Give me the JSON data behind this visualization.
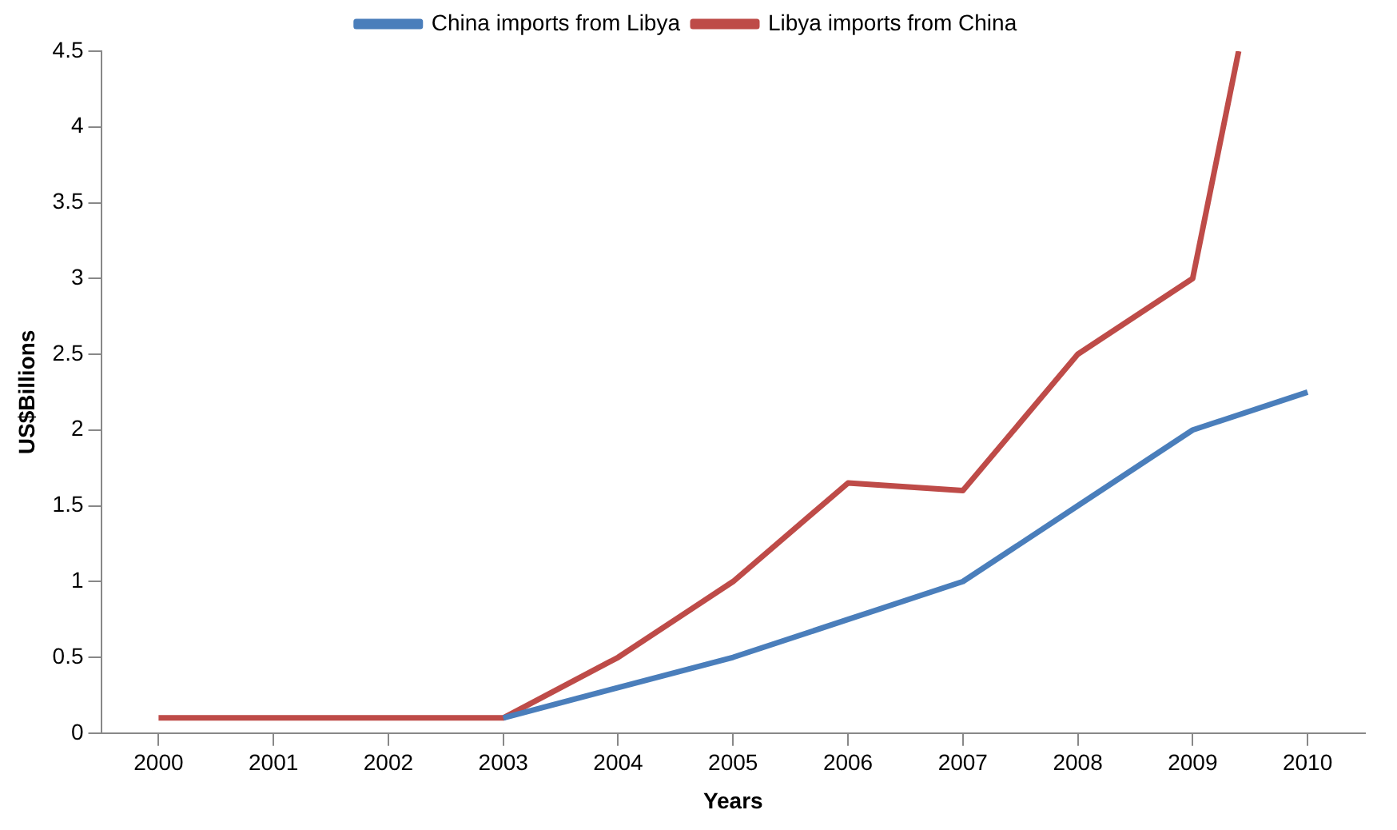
{
  "chart_data": {
    "type": "line",
    "xlabel": "Years",
    "ylabel": "US$Billions",
    "xlim": [
      1999.5,
      2010.5
    ],
    "xticks": [
      2000,
      2001,
      2002,
      2003,
      2004,
      2005,
      2006,
      2007,
      2008,
      2009,
      2010
    ],
    "ylim": [
      0,
      4.5
    ],
    "yticks": [
      0,
      0.5,
      1,
      1.5,
      2,
      2.5,
      3,
      3.5,
      4,
      4.5
    ],
    "grid": false,
    "legend": "top",
    "marker": "none",
    "series": [
      {
        "name": "China imports from Libya",
        "color": "#4a7ebb",
        "x": [
          2003,
          2004,
          2005,
          2006,
          2007,
          2008,
          2009,
          2010
        ],
        "values": [
          0.1,
          0.3,
          0.5,
          0.75,
          1.0,
          1.5,
          2.0,
          2.25
        ]
      },
      {
        "name": "Libya imports from China",
        "color": "#be4b48",
        "x": [
          2000,
          2001,
          2002,
          2003,
          2004,
          2005,
          2006,
          2007,
          2008,
          2009,
          2009.4
        ],
        "values": [
          0.1,
          0.1,
          0.1,
          0.1,
          0.5,
          1.0,
          1.65,
          1.6,
          2.5,
          3.0,
          4.5
        ]
      }
    ]
  }
}
